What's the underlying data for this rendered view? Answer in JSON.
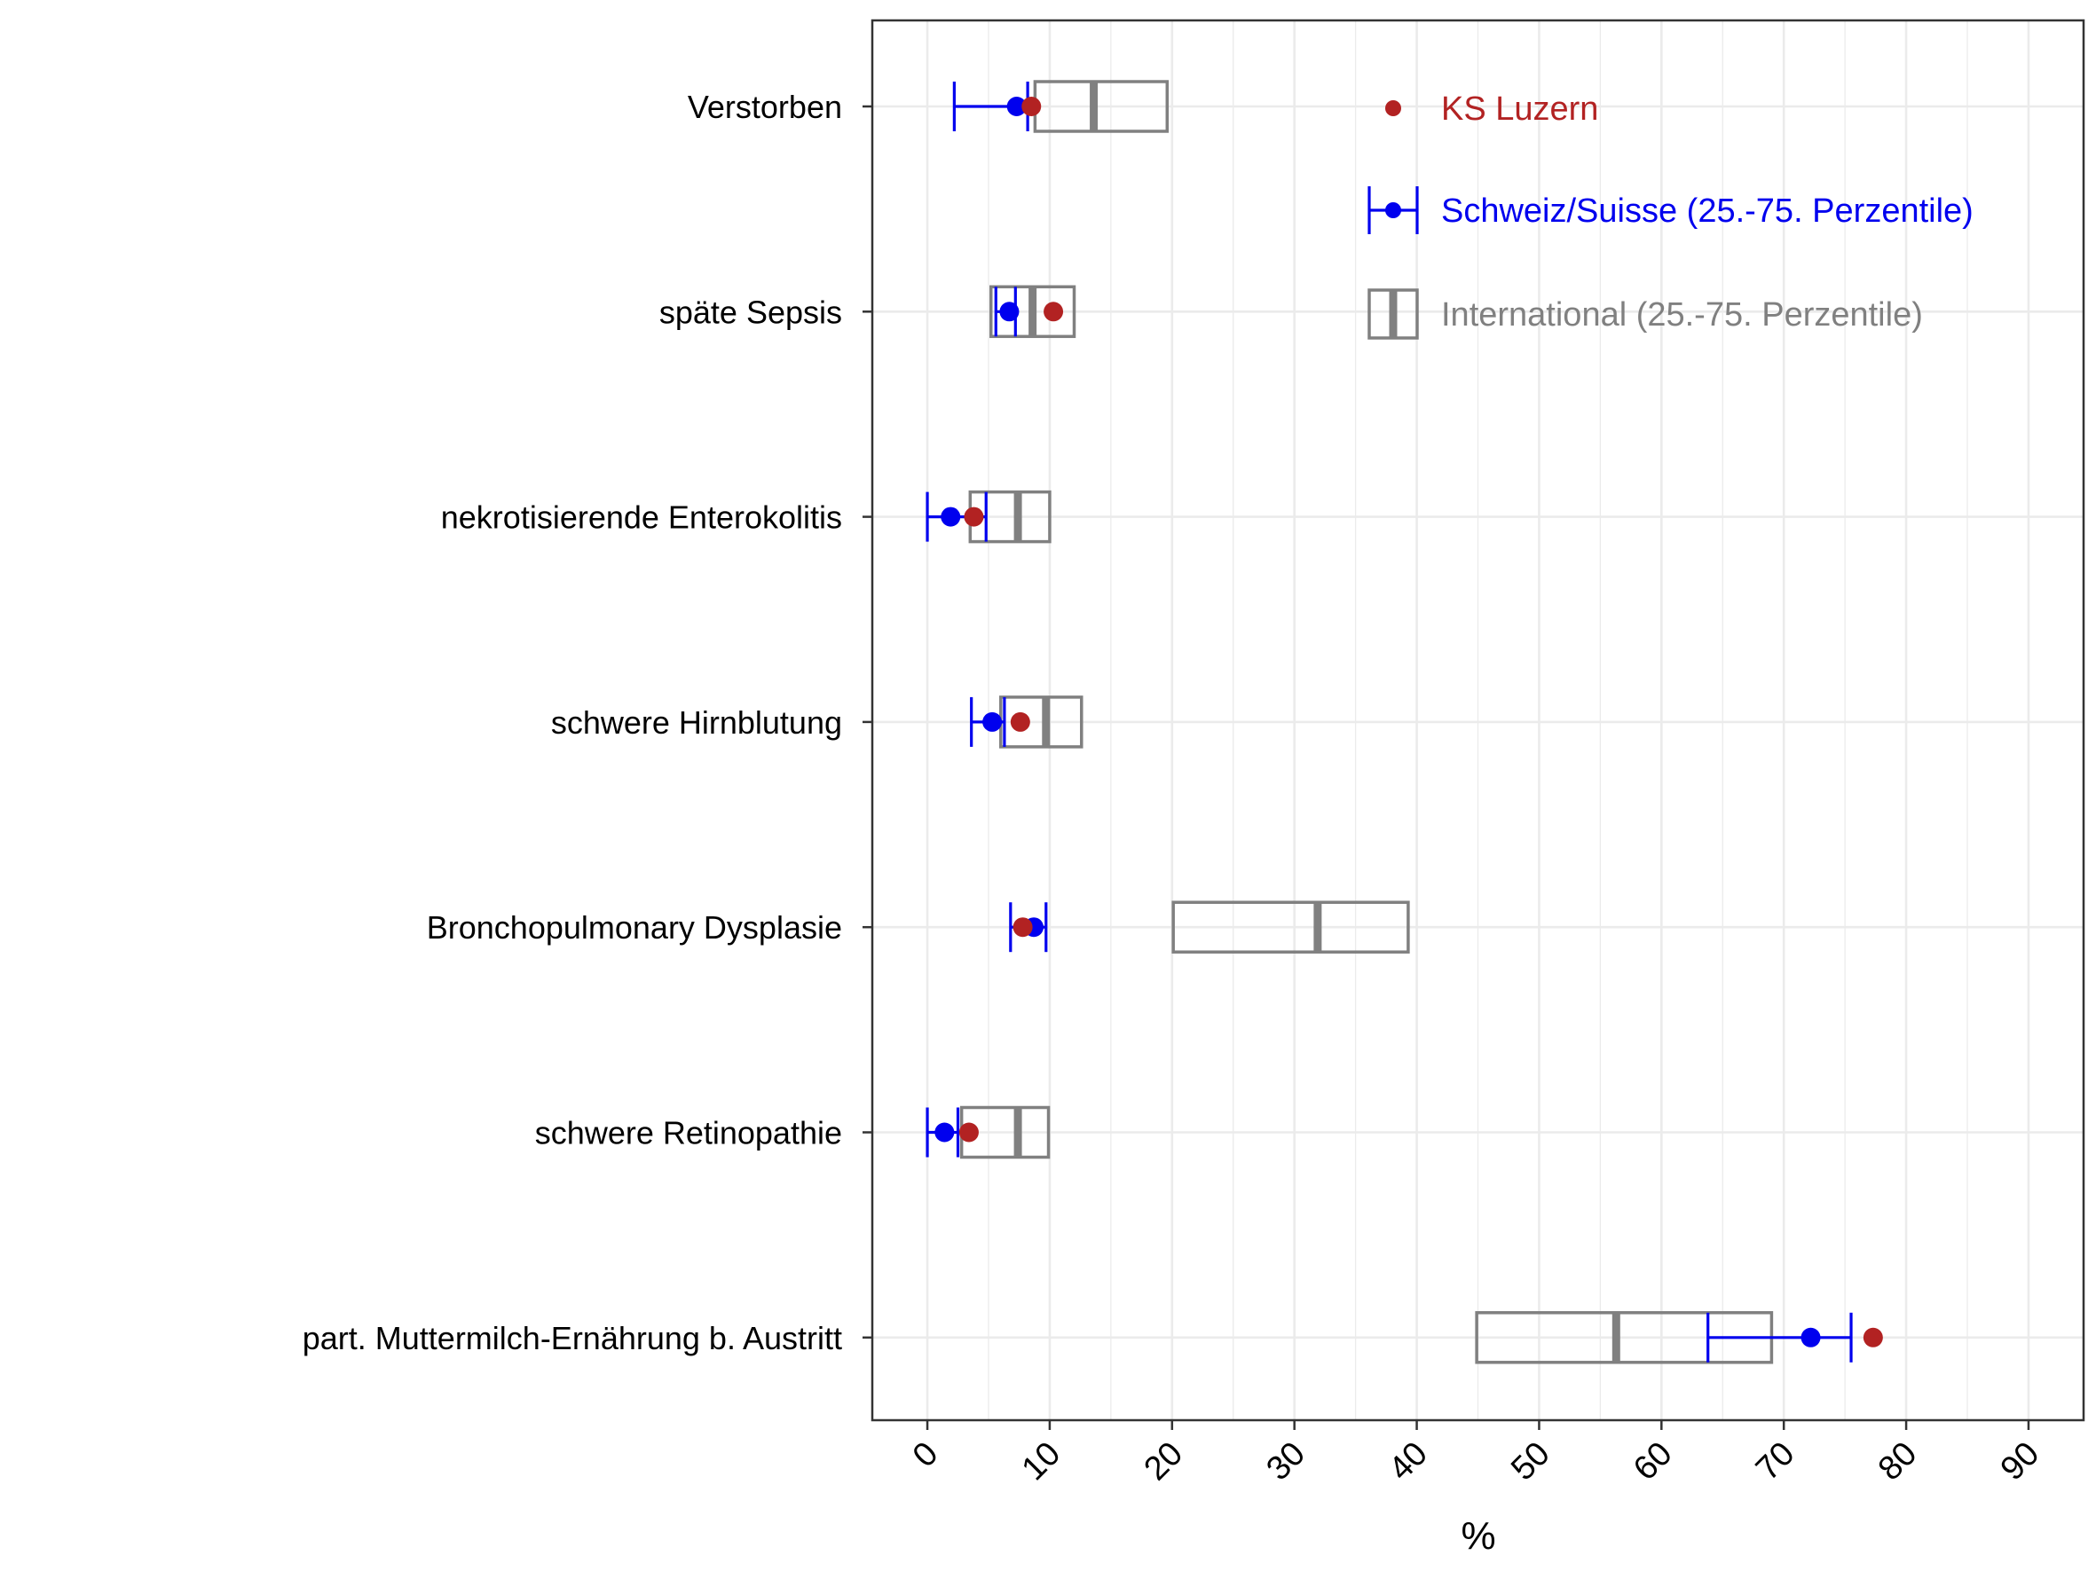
{
  "chart_data": {
    "type": "box",
    "xlabel": "%",
    "ylabel": "",
    "xlim": [
      -4.5,
      94.5
    ],
    "x_ticks": [
      "0",
      "10",
      "20",
      "30",
      "40",
      "50",
      "60",
      "70",
      "80",
      "90"
    ],
    "x_tick_values": [
      0,
      10,
      20,
      30,
      40,
      50,
      60,
      70,
      80,
      90
    ],
    "grid": true,
    "legend_position": "top-right",
    "colors": {
      "ks_luzern": "#b22222",
      "schweiz": "#0000ee",
      "international": "#808080",
      "grid": "#ebebeb",
      "panel_border": "#333333"
    },
    "legend": [
      {
        "key": "ks",
        "label": "KS Luzern"
      },
      {
        "key": "ch",
        "label": "Schweiz/Suisse (25.-75. Perzentile)"
      },
      {
        "key": "int",
        "label": "International (25.-75. Perzentile)"
      }
    ],
    "categories": [
      "Verstorben",
      "späte Sepsis",
      "nekrotisierende Enterokolitis",
      "schwere Hirnblutung",
      "Bronchopulmonary Dysplasie",
      "schwere Retinopathie",
      "part. Muttermilch-Ernährung b. Austritt"
    ],
    "series": [
      {
        "name": "KS Luzern",
        "values": [
          8.5,
          10.3,
          3.8,
          7.6,
          7.8,
          3.4,
          77.3
        ]
      },
      {
        "name": "Schweiz/Suisse (25.-75. Perzentile)",
        "median": [
          7.3,
          6.7,
          1.9,
          5.3,
          8.7,
          1.4,
          72.2
        ],
        "q1": [
          2.2,
          5.6,
          0.0,
          3.6,
          6.8,
          0.0,
          63.8
        ],
        "q3": [
          8.2,
          7.2,
          4.8,
          6.3,
          9.7,
          2.5,
          75.5
        ]
      },
      {
        "name": "International (25.-75. Perzentile)",
        "median": [
          13.6,
          8.6,
          7.4,
          9.7,
          31.9,
          7.4,
          56.3
        ],
        "q1": [
          8.8,
          5.2,
          3.5,
          6.0,
          20.1,
          2.8,
          44.9
        ],
        "q3": [
          19.6,
          12.0,
          10.0,
          12.6,
          39.3,
          9.9,
          69.0
        ]
      }
    ]
  }
}
